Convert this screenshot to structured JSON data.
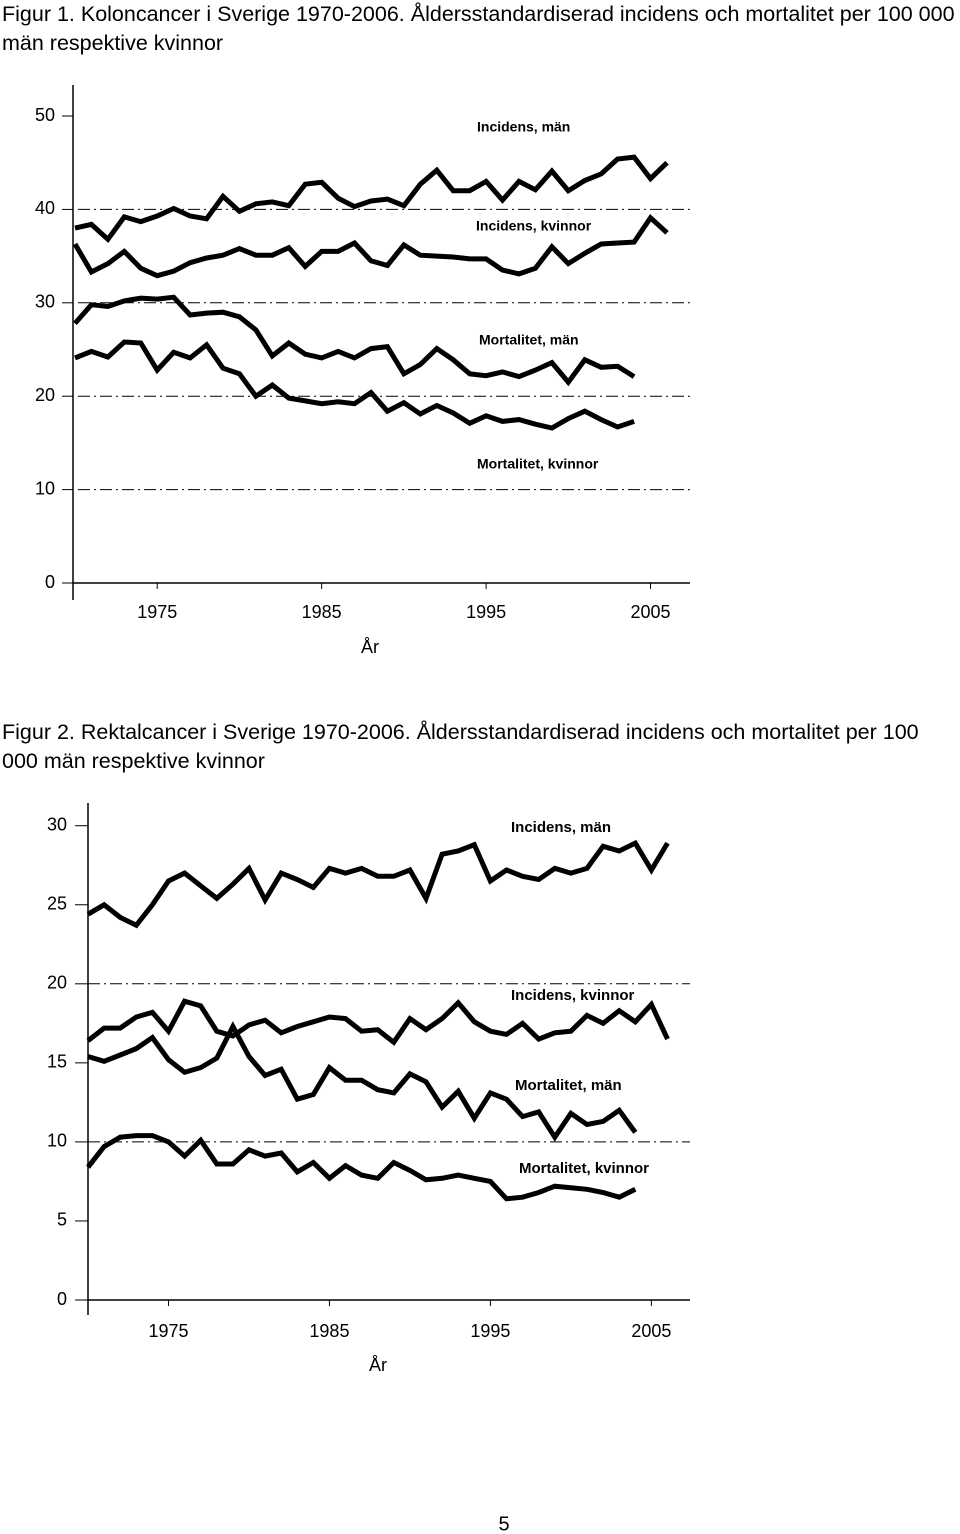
{
  "chart_data": [
    {
      "type": "line",
      "title": "Figur 1. Koloncancer i Sverige 1970-2006. Åldersstandardiserad incidens och mortalitet per 100 000 män respektive kvinnor",
      "x": [
        1970,
        1971,
        1972,
        1973,
        1974,
        1975,
        1976,
        1977,
        1978,
        1979,
        1980,
        1981,
        1982,
        1983,
        1984,
        1985,
        1986,
        1987,
        1988,
        1989,
        1990,
        1991,
        1992,
        1993,
        1994,
        1995,
        1996,
        1997,
        1998,
        1999,
        2000,
        2001,
        2002,
        2003,
        2004,
        2005,
        2006
      ],
      "xlim": [
        1970,
        2007.4
      ],
      "xticks": [
        1975,
        1985,
        1995,
        2005
      ],
      "xlabel": "År",
      "ylim": [
        0,
        53
      ],
      "yticks": [
        0,
        10,
        20,
        30,
        40,
        50
      ],
      "grid_lines": [
        40,
        30,
        20,
        10
      ],
      "series": [
        {
          "name": "Incidens, män",
          "color": "#000000",
          "values": [
            38.0,
            38.4,
            36.8,
            39.2,
            38.7,
            39.3,
            40.1,
            39.3,
            39.0,
            41.4,
            39.8,
            40.6,
            40.8,
            40.4,
            42.7,
            42.9,
            41.2,
            40.3,
            40.9,
            41.1,
            40.4,
            42.7,
            44.2,
            42.0,
            42.0,
            43.0,
            41.0,
            43.0,
            42.1,
            44.1,
            42.0,
            43.1,
            43.8,
            45.4,
            45.6,
            43.3,
            45.0
          ]
        },
        {
          "name": "Incidens, kvinnor",
          "color": "#000000",
          "values": [
            36.3,
            33.3,
            34.2,
            35.5,
            33.7,
            32.9,
            33.4,
            34.3,
            34.8,
            35.1,
            35.8,
            35.1,
            35.1,
            35.9,
            33.9,
            35.5,
            35.5,
            36.4,
            34.5,
            34.0,
            36.2,
            35.1,
            35.0,
            34.9,
            34.7,
            34.7,
            33.5,
            33.1,
            33.7,
            36.0,
            34.2,
            35.3,
            36.3,
            36.4,
            36.5,
            39.1,
            37.5
          ]
        },
        {
          "name": "Mortalitet, män",
          "color": "#000000",
          "values": [
            27.8,
            29.8,
            29.6,
            30.2,
            30.5,
            30.4,
            30.6,
            28.7,
            28.9,
            29.0,
            28.5,
            27.1,
            24.3,
            25.7,
            24.5,
            24.1,
            24.8,
            24.1,
            25.1,
            25.3,
            22.4,
            23.4,
            25.1,
            23.9,
            22.4,
            22.2,
            22.6,
            22.1,
            22.8,
            23.6,
            21.5,
            23.9,
            23.1,
            23.2,
            22.1,
            null,
            null
          ]
        },
        {
          "name": "Mortalitet, kvinnor",
          "color": "#000000",
          "values": [
            24.1,
            24.8,
            24.2,
            25.8,
            25.7,
            22.8,
            24.7,
            24.1,
            25.5,
            23.0,
            22.4,
            20.0,
            21.2,
            19.8,
            19.5,
            19.2,
            19.4,
            19.2,
            20.4,
            18.4,
            19.3,
            18.1,
            19.0,
            18.2,
            17.1,
            17.9,
            17.3,
            17.5,
            17.0,
            16.6,
            17.6,
            18.4,
            17.5,
            16.7,
            17.3,
            null,
            null
          ]
        }
      ]
    },
    {
      "type": "line",
      "title": "Figur 2. Rektalcancer i Sverige 1970-2006. Åldersstandardiserad incidens och mortalitet per 100 000 män respektive kvinnor",
      "x": [
        1970,
        1971,
        1972,
        1973,
        1974,
        1975,
        1976,
        1977,
        1978,
        1979,
        1980,
        1981,
        1982,
        1983,
        1984,
        1985,
        1986,
        1987,
        1988,
        1989,
        1990,
        1991,
        1992,
        1993,
        1994,
        1995,
        1996,
        1997,
        1998,
        1999,
        2000,
        2001,
        2002,
        2003,
        2004,
        2005,
        2006
      ],
      "xlim": [
        1970,
        2007.4
      ],
      "xticks": [
        1975,
        1985,
        1995,
        2005
      ],
      "xlabel": "År",
      "ylim": [
        0,
        31.5
      ],
      "yticks": [
        0,
        5,
        10,
        15,
        20,
        25,
        30
      ],
      "grid_lines": [
        20,
        10
      ],
      "series": [
        {
          "name": "Incidens, män",
          "color": "#000000",
          "values": [
            24.4,
            25.0,
            24.2,
            23.7,
            25.0,
            26.5,
            27.0,
            26.2,
            25.4,
            26.3,
            27.3,
            25.3,
            27.0,
            26.6,
            26.1,
            27.3,
            27.0,
            27.3,
            26.8,
            26.8,
            27.2,
            25.4,
            28.2,
            28.4,
            28.8,
            26.5,
            27.2,
            26.8,
            26.6,
            27.3,
            27.0,
            27.3,
            28.7,
            28.4,
            28.9,
            27.2,
            28.9
          ]
        },
        {
          "name": "Incidens, kvinnor",
          "color": "#000000",
          "values": [
            16.4,
            17.2,
            17.2,
            17.9,
            18.2,
            17.0,
            18.9,
            18.6,
            17.0,
            16.7,
            17.4,
            17.7,
            16.9,
            17.3,
            17.6,
            17.9,
            17.8,
            17.0,
            17.1,
            16.3,
            17.8,
            17.1,
            17.8,
            18.8,
            17.6,
            17.0,
            16.8,
            17.5,
            16.5,
            16.9,
            17.0,
            18.0,
            17.5,
            18.3,
            17.6,
            18.7,
            16.5
          ]
        },
        {
          "name": "Mortalitet, män",
          "color": "#000000",
          "values": [
            15.4,
            15.1,
            15.5,
            15.9,
            16.6,
            15.2,
            14.4,
            14.7,
            15.3,
            17.3,
            15.4,
            14.2,
            14.6,
            12.7,
            13.0,
            14.7,
            13.9,
            13.9,
            13.3,
            13.1,
            14.3,
            13.8,
            12.2,
            13.2,
            11.5,
            13.1,
            12.7,
            11.6,
            11.9,
            10.3,
            11.8,
            11.1,
            11.3,
            12.0,
            10.6,
            null,
            null
          ]
        },
        {
          "name": "Mortalitet, kvinnor",
          "color": "#000000",
          "values": [
            8.4,
            9.7,
            10.3,
            10.4,
            10.4,
            10.0,
            9.1,
            10.1,
            8.6,
            8.6,
            9.5,
            9.1,
            9.3,
            8.1,
            8.7,
            7.7,
            8.5,
            7.9,
            7.7,
            8.7,
            8.2,
            7.6,
            7.7,
            7.9,
            7.7,
            7.5,
            6.4,
            6.5,
            6.8,
            7.2,
            7.1,
            7.0,
            6.8,
            6.5,
            7.0,
            null,
            null
          ]
        }
      ]
    }
  ],
  "page_number": "5"
}
